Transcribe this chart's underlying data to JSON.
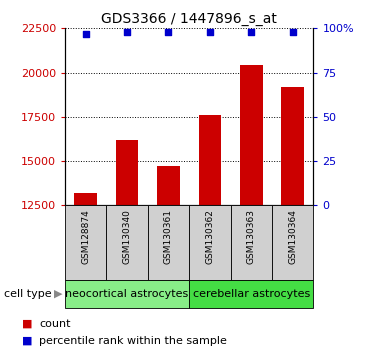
{
  "title": "GDS3366 / 1447896_s_at",
  "samples": [
    "GSM128874",
    "GSM130340",
    "GSM130361",
    "GSM130362",
    "GSM130363",
    "GSM130364"
  ],
  "counts": [
    13200,
    16200,
    14700,
    17600,
    20400,
    19200
  ],
  "percentiles": [
    97,
    98,
    98,
    98,
    98,
    98
  ],
  "ylim_left": [
    12500,
    22500
  ],
  "yticks_left": [
    12500,
    15000,
    17500,
    20000,
    22500
  ],
  "yticks_right": [
    0,
    25,
    50,
    75,
    100
  ],
  "ylim_right": [
    0,
    100
  ],
  "bar_color": "#cc0000",
  "dot_color": "#0000cc",
  "cell_type_groups": [
    {
      "label": "neocortical astrocytes",
      "count": 3,
      "color": "#88ee88"
    },
    {
      "label": "cerebellar astrocytes",
      "count": 3,
      "color": "#44dd44"
    }
  ],
  "cell_type_label": "cell type",
  "legend_items": [
    {
      "label": "count",
      "color": "#cc0000"
    },
    {
      "label": "percentile rank within the sample",
      "color": "#0000cc"
    }
  ],
  "bar_color_str": "#cc0000",
  "right_axis_color": "#0000cc",
  "title_fontsize": 10,
  "tick_fontsize": 8,
  "sample_fontsize": 6.5,
  "celltype_fontsize": 8,
  "legend_fontsize": 8,
  "bar_width": 0.55,
  "sample_box_color": "#d0d0d0",
  "bg_color": "#ffffff"
}
